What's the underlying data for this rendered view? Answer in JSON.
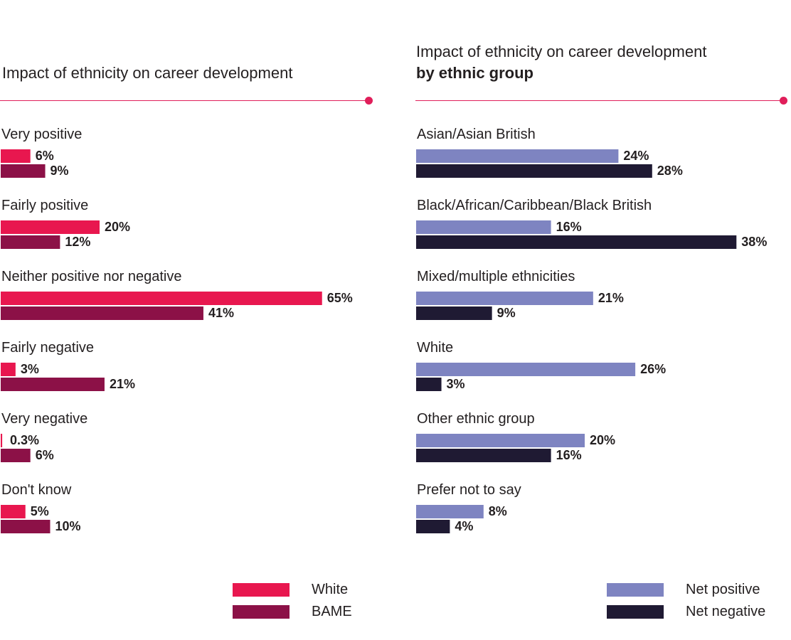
{
  "charts": {
    "left": {
      "title_line1": "Impact of ethnicity on career development",
      "title_line2": ""
    },
    "right": {
      "title_line1": "Impact of ethnicity on career development",
      "title_line2": "by ethnic group"
    }
  },
  "colors": {
    "accent": "#e01e5a",
    "white": "#e8174f",
    "bame": "#8c1147",
    "net_positive": "#7e84c1",
    "net_negative": "#1f1a33"
  },
  "chart_data": [
    {
      "type": "bar",
      "orientation": "horizontal",
      "title": "Impact of ethnicity on career development",
      "categories": [
        "Very positive",
        "Fairly positive",
        "Neither positive nor negative",
        "Fairly negative",
        "Very negative",
        "Don't know"
      ],
      "series": [
        {
          "name": "White",
          "values": [
            6,
            20,
            65,
            3,
            0.3,
            5
          ],
          "labels": [
            "6%",
            "20%",
            "65%",
            "3%",
            "0.3%",
            "5%"
          ],
          "color": "#e8174f"
        },
        {
          "name": "BAME",
          "values": [
            9,
            12,
            41,
            21,
            6,
            10
          ],
          "labels": [
            "9%",
            "12%",
            "41%",
            "21%",
            "6%",
            "10%"
          ],
          "color": "#8c1147"
        }
      ],
      "unit": "%",
      "xlim": [
        0,
        65
      ],
      "grid": false,
      "legend_position": "bottom-right"
    },
    {
      "type": "bar",
      "orientation": "horizontal",
      "title": "Impact of ethnicity on career development by ethnic group",
      "categories": [
        "Asian/Asian British",
        "Black/African/Caribbean/Black British",
        "Mixed/multiple ethnicities",
        "White",
        "Other ethnic group",
        "Prefer not to say"
      ],
      "series": [
        {
          "name": "Net positive",
          "values": [
            24,
            16,
            21,
            26,
            20,
            8
          ],
          "labels": [
            "24%",
            "16%",
            "21%",
            "26%",
            "20%",
            "8%"
          ],
          "color": "#7e84c1"
        },
        {
          "name": "Net negative",
          "values": [
            28,
            38,
            9,
            3,
            16,
            4
          ],
          "labels": [
            "28%",
            "38%",
            "9%",
            "3%",
            "16%",
            "4%"
          ],
          "color": "#1f1a33"
        }
      ],
      "unit": "%",
      "xlim": [
        0,
        38
      ],
      "grid": false,
      "legend_position": "bottom-right"
    }
  ]
}
